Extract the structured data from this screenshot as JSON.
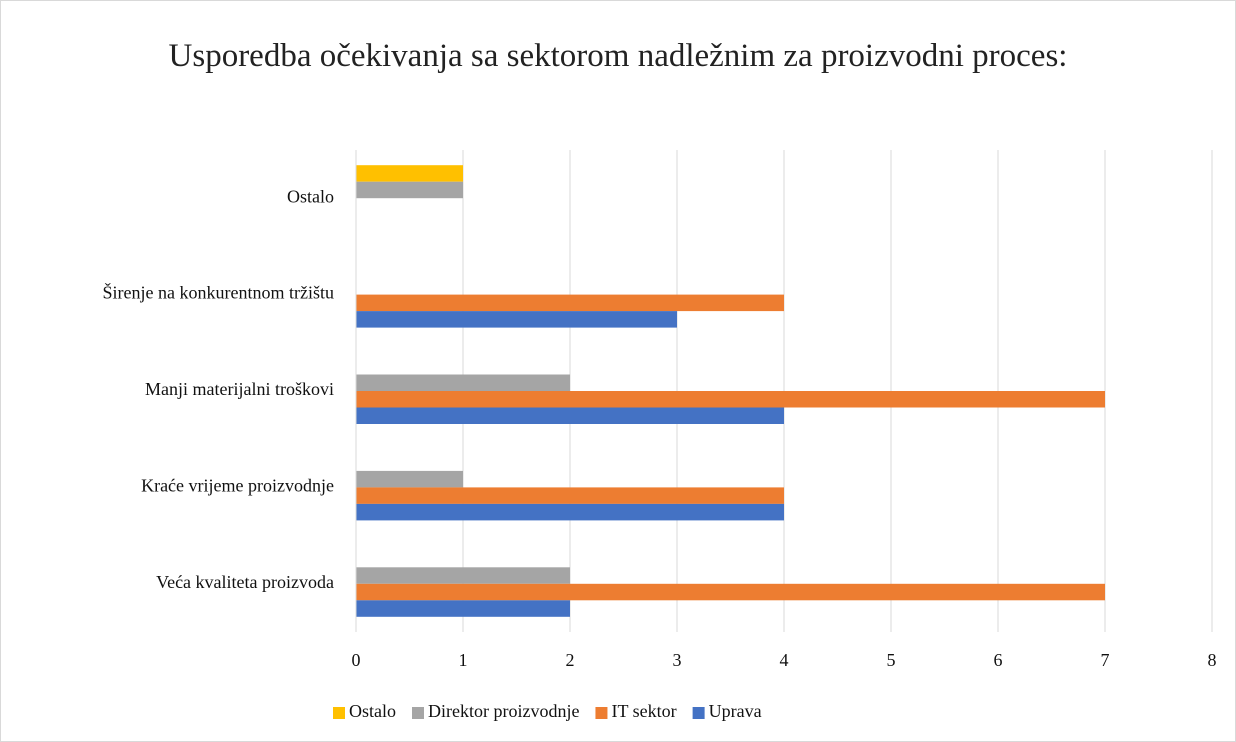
{
  "chart_data": {
    "type": "bar",
    "orientation": "horizontal",
    "title": "Usporedba očekivanja sa sektorom nadležnim za proizvodni proces:",
    "categories": [
      "Veća kvaliteta proizvoda",
      "Kraće vrijeme proizvodnje",
      "Manji materijalni troškovi",
      "Širenje na konkurentnom tržištu",
      "Ostalo"
    ],
    "series": [
      {
        "name": "Ostalo",
        "color": "#FFC000",
        "values": [
          null,
          null,
          null,
          null,
          1
        ]
      },
      {
        "name": "Direktor proizvodnje",
        "color": "#A5A5A5",
        "values": [
          2,
          1,
          2,
          null,
          1
        ]
      },
      {
        "name": "IT sektor",
        "color": "#ED7D31",
        "values": [
          7,
          4,
          7,
          4,
          null
        ]
      },
      {
        "name": "Uprava",
        "color": "#4472C4",
        "values": [
          2,
          4,
          4,
          3,
          null
        ]
      }
    ],
    "xlim": [
      0,
      8
    ],
    "xticks": [
      0,
      1,
      2,
      3,
      4,
      5,
      6,
      7,
      8
    ],
    "grid": true,
    "legend": "bottom"
  }
}
